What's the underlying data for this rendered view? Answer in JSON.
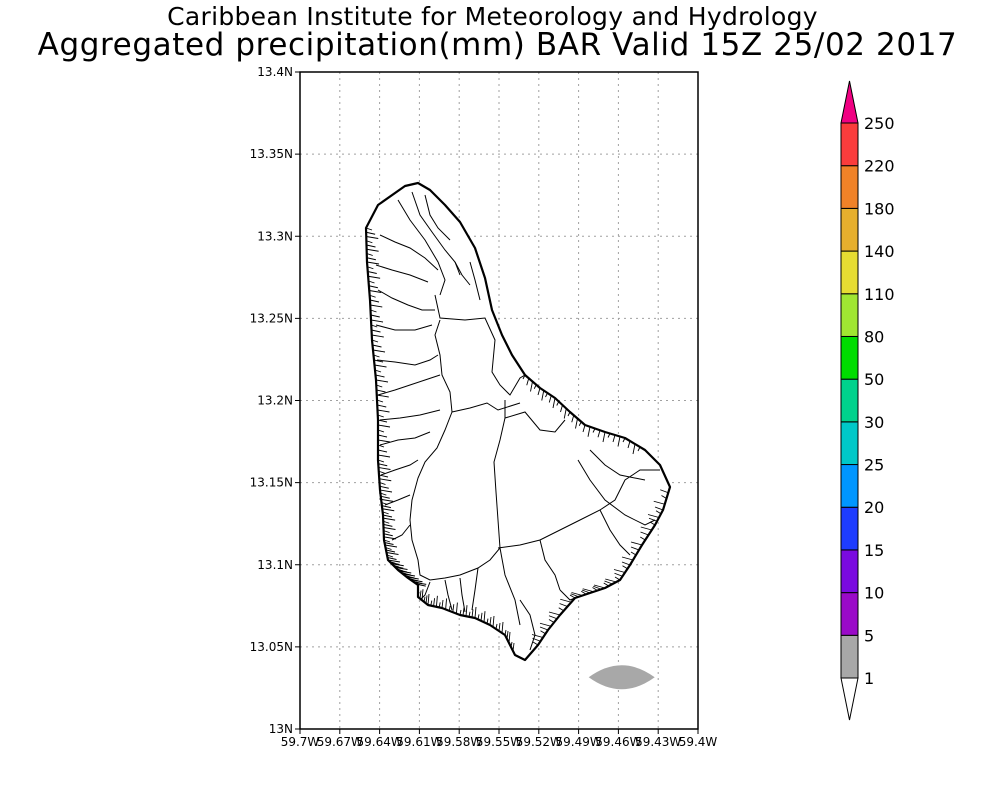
{
  "title": {
    "line1": "Caribbean Institute for Meteorology and Hydrology",
    "line2": "Aggregated precipitation(mm) BAR Valid 15Z 25/02 2017"
  },
  "axes": {
    "lat_ticks": [
      "13.4N",
      "13.35N",
      "13.3N",
      "13.25N",
      "13.2N",
      "13.15N",
      "13.1N",
      "13.05N",
      "13N"
    ],
    "lon_ticks": [
      "59.7W",
      "59.67W",
      "59.64W",
      "59.61W",
      "59.58W",
      "59.55W",
      "59.52W",
      "59.49W",
      "59.46W",
      "59.43W",
      "59.4W"
    ],
    "lat_range": [
      13.0,
      13.4
    ],
    "lon_range": [
      -59.7,
      -59.4
    ],
    "grid": true
  },
  "colorbar": {
    "levels": [
      "1",
      "5",
      "10",
      "15",
      "20",
      "25",
      "30",
      "50",
      "80",
      "110",
      "140",
      "180",
      "220",
      "250"
    ],
    "colors": [
      "#a8a8a8",
      "#9a0ac8",
      "#7a0ae0",
      "#1e3cff",
      "#0096ff",
      "#00c8c8",
      "#00d28c",
      "#00dc00",
      "#a0e632",
      "#e6dc32",
      "#e6af2d",
      "#f08228",
      "#fa3c3c",
      "#f00082"
    ]
  },
  "precip_areas": [
    {
      "lon": -59.4575,
      "lat": 13.0315,
      "value_range": "1-5",
      "color": "#a8a8a8"
    }
  ]
}
